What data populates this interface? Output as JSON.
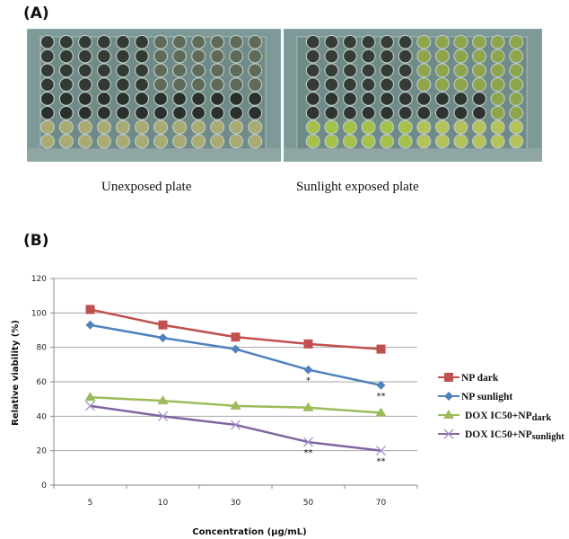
{
  "figure": {
    "panel_a_label": "(A)",
    "panel_b_label": "(B)",
    "plates": [
      {
        "caption": "Unexposed plate",
        "well_rows": 8,
        "well_cols": 12
      },
      {
        "caption": "Sunlight exposed plate",
        "well_rows": 8,
        "well_cols": 12
      }
    ]
  },
  "chart_data": {
    "type": "line",
    "title": "",
    "xlabel": "Concentration (µg/mL)",
    "ylabel": "Relative viability (%)",
    "categories": [
      "5",
      "10",
      "30",
      "50",
      "70"
    ],
    "ylim": [
      0,
      120
    ],
    "yticks": [
      0,
      20,
      40,
      60,
      80,
      100,
      120
    ],
    "grid": true,
    "legend_position": "right",
    "series": [
      {
        "name": "NP dark",
        "color": "#c0504d",
        "marker": "square",
        "values": [
          102,
          93,
          86,
          82,
          79
        ],
        "significance": [
          "",
          "",
          "",
          "",
          ""
        ]
      },
      {
        "name": "NP sunlight",
        "color": "#4f81bd",
        "marker": "diamond",
        "values": [
          93,
          85.5,
          79,
          67,
          58
        ],
        "significance": [
          "",
          "",
          "",
          "*",
          "**"
        ]
      },
      {
        "name": "DOX IC50+NP dark",
        "legend_main": "DOX IC50+NP",
        "legend_sub": "dark",
        "color": "#9bbb59",
        "marker": "triangle",
        "values": [
          51,
          49,
          46,
          45,
          42
        ],
        "significance": [
          "",
          "",
          "",
          "",
          ""
        ]
      },
      {
        "name": "DOX IC50+NP sunlight",
        "legend_main": "DOX IC50+NP",
        "legend_sub": "sunlight",
        "color": "#8064a2",
        "marker": "x",
        "values": [
          46,
          40,
          35,
          25,
          20
        ],
        "significance": [
          "",
          "",
          "",
          "**",
          "**"
        ]
      }
    ]
  }
}
